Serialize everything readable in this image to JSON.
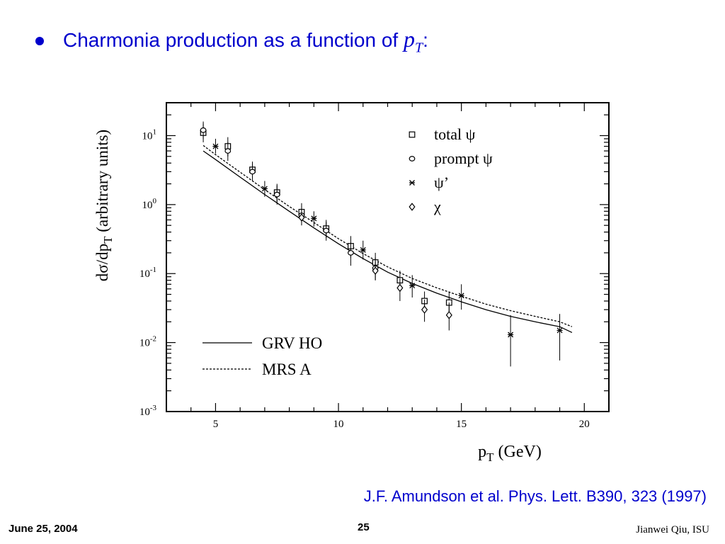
{
  "slide": {
    "title_text": "Charmonia production as a function of ",
    "title_var": "p",
    "title_var_sub": "T",
    "title_suffix": ":",
    "citation": "J.F. Amundson et al. Phys. Lett. B390, 323 (1997)",
    "footer_date": "June 25, 2004",
    "footer_page": "25",
    "footer_author": "Jianwei Qiu, ISU"
  },
  "colors": {
    "title": "#0000cc",
    "plot": "#000000"
  },
  "chart_data": {
    "type": "scatter",
    "xscale": "linear",
    "yscale": "log",
    "xlim": [
      3,
      21
    ],
    "ylim": [
      0.001,
      30
    ],
    "xlabel": "p",
    "xlabel_sub": "T",
    "xlabel_unit": "(GeV)",
    "ylabel_parts": [
      "dσ/dp",
      "T",
      " (arbitrary units)"
    ],
    "xticks": [
      5,
      10,
      15,
      20
    ],
    "yticks": [
      {
        "value": 10,
        "base": "10",
        "exp": "1"
      },
      {
        "value": 1,
        "base": "10",
        "exp": "0"
      },
      {
        "value": 0.1,
        "base": "10",
        "exp": "-1"
      },
      {
        "value": 0.01,
        "base": "10",
        "exp": "-2"
      },
      {
        "value": 0.001,
        "base": "10",
        "exp": "-3"
      }
    ],
    "legend_points": [
      {
        "marker": "square",
        "label": "total ψ"
      },
      {
        "marker": "circle",
        "label": "prompt ψ"
      },
      {
        "marker": "star",
        "label": "ψ’"
      },
      {
        "marker": "diamond",
        "label": "χ"
      }
    ],
    "legend_lines": [
      {
        "style": "solid",
        "label": "GRV HO"
      },
      {
        "style": "dashed",
        "label": "MRS A"
      }
    ],
    "series": [
      {
        "marker": "square",
        "points": [
          {
            "x": 4.5,
            "y": 11,
            "lo": 8,
            "hi": 15
          },
          {
            "x": 5.5,
            "y": 7,
            "lo": 5,
            "hi": 9.5
          },
          {
            "x": 6.5,
            "y": 3.2,
            "lo": 2.4,
            "hi": 4.2
          },
          {
            "x": 7.5,
            "y": 1.5,
            "lo": 1.1,
            "hi": 2
          },
          {
            "x": 8.5,
            "y": 0.78,
            "lo": 0.55,
            "hi": 1.05
          },
          {
            "x": 9.5,
            "y": 0.45,
            "lo": 0.33,
            "hi": 0.6
          },
          {
            "x": 10.5,
            "y": 0.25,
            "lo": 0.17,
            "hi": 0.35
          },
          {
            "x": 11.5,
            "y": 0.145,
            "lo": 0.1,
            "hi": 0.2
          },
          {
            "x": 12.5,
            "y": 0.08,
            "lo": 0.055,
            "hi": 0.11
          },
          {
            "x": 13.5,
            "y": 0.04,
            "lo": 0.028,
            "hi": 0.055
          },
          {
            "x": 14.5,
            "y": 0.038,
            "lo": 0.024,
            "hi": 0.055
          }
        ]
      },
      {
        "marker": "circle",
        "points": [
          {
            "x": 4.5,
            "y": 12,
            "lo": 9,
            "hi": 16
          },
          {
            "x": 5.5,
            "y": 6,
            "lo": 4.3,
            "hi": 8
          },
          {
            "x": 6.5,
            "y": 3,
            "lo": 2.2,
            "hi": 4
          },
          {
            "x": 7.5,
            "y": 1.4,
            "lo": 1,
            "hi": 1.9
          },
          {
            "x": 8.5,
            "y": 0.7,
            "lo": 0.5,
            "hi": 0.95
          },
          {
            "x": 9.5,
            "y": 0.42,
            "lo": 0.3,
            "hi": 0.56
          },
          {
            "x": 10.5,
            "y": 0.2,
            "lo": 0.13,
            "hi": 0.28
          },
          {
            "x": 11.5,
            "y": 0.12,
            "lo": 0.08,
            "hi": 0.17
          }
        ]
      },
      {
        "marker": "star",
        "points": [
          {
            "x": 5,
            "y": 7,
            "lo": 5.5,
            "hi": 9
          },
          {
            "x": 7,
            "y": 1.7,
            "lo": 1.3,
            "hi": 2.2
          },
          {
            "x": 9,
            "y": 0.63,
            "lo": 0.48,
            "hi": 0.8
          },
          {
            "x": 11,
            "y": 0.22,
            "lo": 0.16,
            "hi": 0.3
          },
          {
            "x": 13,
            "y": 0.067,
            "lo": 0.045,
            "hi": 0.095
          },
          {
            "x": 15,
            "y": 0.048,
            "lo": 0.03,
            "hi": 0.07
          },
          {
            "x": 17,
            "y": 0.013,
            "lo": 0.0045,
            "hi": 0.025
          },
          {
            "x": 19,
            "y": 0.015,
            "lo": 0.0055,
            "hi": 0.026
          }
        ]
      },
      {
        "marker": "diamond",
        "points": [
          {
            "x": 8.5,
            "y": 0.65,
            "lo": 0.5,
            "hi": 0.85
          },
          {
            "x": 11.5,
            "y": 0.11,
            "lo": 0.08,
            "hi": 0.15
          },
          {
            "x": 12.5,
            "y": 0.062,
            "lo": 0.04,
            "hi": 0.085
          },
          {
            "x": 13.5,
            "y": 0.03,
            "lo": 0.02,
            "hi": 0.042
          },
          {
            "x": 14.5,
            "y": 0.025,
            "lo": 0.015,
            "hi": 0.038
          }
        ]
      }
    ],
    "curves": [
      {
        "name": "GRV HO",
        "style": "solid",
        "x": [
          4.5,
          5,
          6,
          7,
          8,
          9,
          10,
          11,
          12,
          13,
          14,
          15,
          16,
          17,
          18,
          19,
          19.5
        ],
        "y": [
          6,
          4.5,
          2.5,
          1.4,
          0.8,
          0.46,
          0.27,
          0.165,
          0.105,
          0.072,
          0.052,
          0.039,
          0.03,
          0.024,
          0.02,
          0.017,
          0.014
        ]
      },
      {
        "name": "MRS A",
        "style": "dashed",
        "x": [
          4.5,
          5,
          6,
          7,
          8,
          9,
          10,
          11,
          12,
          13,
          14,
          15,
          16,
          17,
          18,
          19,
          19.5
        ],
        "y": [
          7.2,
          5.3,
          2.95,
          1.65,
          0.94,
          0.55,
          0.32,
          0.195,
          0.125,
          0.085,
          0.062,
          0.047,
          0.036,
          0.029,
          0.024,
          0.02,
          0.017
        ]
      }
    ]
  }
}
